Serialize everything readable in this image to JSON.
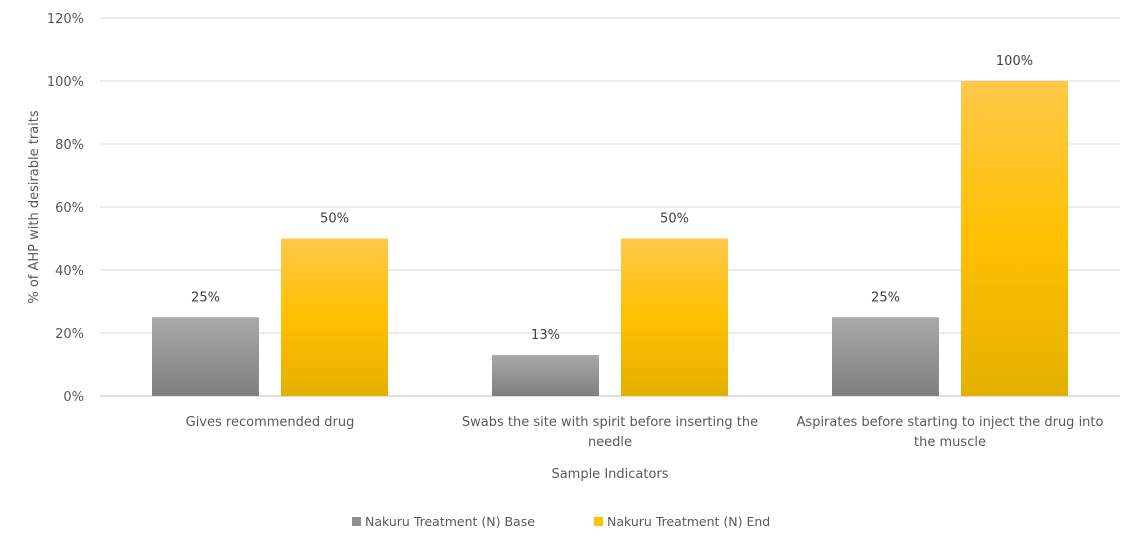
{
  "chart_data": {
    "type": "bar",
    "xlabel": "Sample Indicators",
    "ylabel": "% of AHP with desirable traits",
    "ylim": [
      0,
      120
    ],
    "y_ticks": [
      "0%",
      "20%",
      "40%",
      "60%",
      "80%",
      "100%",
      "120%"
    ],
    "grid": true,
    "legend_position": "bottom",
    "categories": [
      [
        "Gives recommended drug"
      ],
      [
        "Swabs the site with spirit before inserting the",
        "needle"
      ],
      [
        "Aspirates before starting to inject the drug into",
        "the muscle"
      ]
    ],
    "series": [
      {
        "name": "Nakuru Treatment (N) Base",
        "values": [
          25,
          13,
          25
        ],
        "labels": [
          "25%",
          "13%",
          "25%"
        ],
        "color": "#8f8f8f"
      },
      {
        "name": "Nakuru Treatment (N) End",
        "values": [
          50,
          50,
          100
        ],
        "labels": [
          "50%",
          "50%",
          "100%"
        ],
        "color": "#ffc000"
      }
    ]
  }
}
